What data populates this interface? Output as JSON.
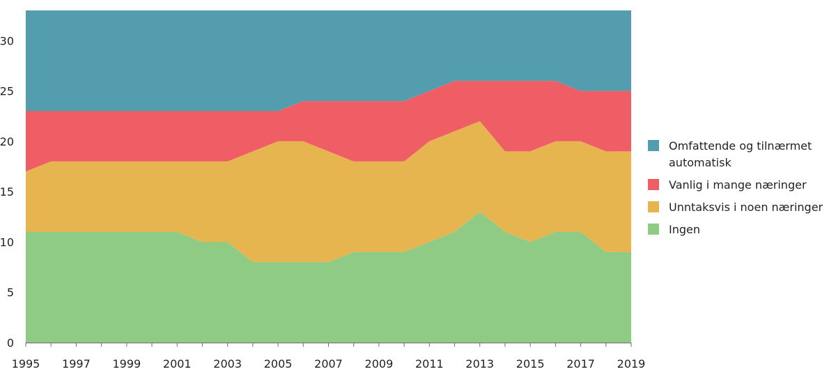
{
  "chart_data": {
    "type": "area",
    "stacked": true,
    "title": "",
    "xlabel": "",
    "ylabel": "",
    "x": [
      1995,
      1996,
      1997,
      1998,
      1999,
      2000,
      2001,
      2002,
      2003,
      2004,
      2005,
      2006,
      2007,
      2008,
      2009,
      2010,
      2011,
      2012,
      2013,
      2014,
      2015,
      2016,
      2017,
      2018,
      2019
    ],
    "x_tick_labels": [
      "1995",
      "1997",
      "1999",
      "2001",
      "2003",
      "2005",
      "2007",
      "2009",
      "2011",
      "2013",
      "2015",
      "2017",
      "2019"
    ],
    "y_tick_labels": [
      "0",
      "5",
      "10",
      "15",
      "20",
      "25",
      "30"
    ],
    "ylim": [
      0,
      33
    ],
    "grid": false,
    "legend_position": "right",
    "series": [
      {
        "name": "Ingen",
        "color": "#8fcb85",
        "values": [
          11,
          11,
          11,
          11,
          11,
          11,
          11,
          10,
          10,
          8,
          8,
          8,
          8,
          9,
          9,
          9,
          10,
          11,
          13,
          11,
          10,
          11,
          11,
          9,
          9
        ]
      },
      {
        "name": "Unntaksvis i noen næringer",
        "color": "#e6b550",
        "values": [
          6,
          7,
          7,
          7,
          7,
          7,
          7,
          8,
          8,
          11,
          12,
          12,
          11,
          9,
          9,
          9,
          10,
          10,
          9,
          8,
          9,
          9,
          9,
          10,
          10
        ]
      },
      {
        "name": "Vanlig i mange næringer",
        "color": "#f05e65",
        "values": [
          6,
          5,
          5,
          5,
          5,
          5,
          5,
          5,
          5,
          4,
          3,
          4,
          5,
          6,
          6,
          6,
          5,
          5,
          4,
          7,
          7,
          6,
          5,
          6,
          6
        ]
      },
      {
        "name": "Omfattende og tilnærmet automatisk",
        "color": "#549dae",
        "values": [
          10,
          10,
          10,
          10,
          10,
          10,
          10,
          10,
          10,
          10,
          10,
          9,
          9,
          9,
          9,
          9,
          8,
          7,
          7,
          7,
          7,
          7,
          8,
          8,
          8
        ]
      }
    ]
  },
  "legend": {
    "items": [
      {
        "label": "Omfattende og tilnærmet\nautomatisk",
        "color": "#549dae"
      },
      {
        "label": "Vanlig i mange næringer",
        "color": "#f05e65"
      },
      {
        "label": "Unntaksvis i noen næringer",
        "color": "#e6b550"
      },
      {
        "label": "Ingen",
        "color": "#8fcb85"
      }
    ]
  }
}
